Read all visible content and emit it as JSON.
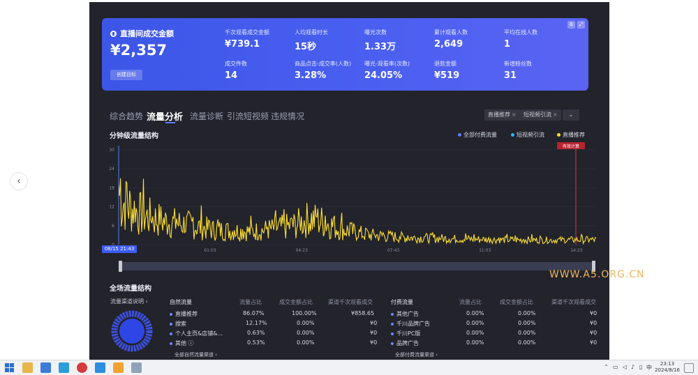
{
  "summary": {
    "gmv_label": "直播间成交金额",
    "gmv_value": "¥2,357",
    "goal_button": "创建目标",
    "metrics": [
      {
        "label": "千次观看成交金额",
        "value": "¥739.1"
      },
      {
        "label": "人均观看时长",
        "value": "15秒"
      },
      {
        "label": "曝光次数",
        "value": "1.33万"
      },
      {
        "label": "累计观看人数",
        "value": "2,649"
      },
      {
        "label": "平均在线人数",
        "value": "1"
      },
      {
        "label": "成交件数",
        "value": "14"
      },
      {
        "label": "商品点击-成交率(人数)",
        "value": "3.28%"
      },
      {
        "label": "曝光-观看率(次数)",
        "value": "24.05%"
      },
      {
        "label": "退款金额",
        "value": "¥519"
      },
      {
        "label": "新增粉丝数",
        "value": "31"
      }
    ]
  },
  "tabs": [
    "综合趋势",
    "流量分析",
    "流量诊断",
    "引流短视频",
    "违规情况"
  ],
  "active_tab": "流量分析",
  "filter_chips": [
    "直播推荐",
    "短视频引流"
  ],
  "chart_section": {
    "title": "分钟级流量结构",
    "legend": [
      {
        "label": "全部付费流量",
        "color": "#5b7cff"
      },
      {
        "label": "短视频引流",
        "color": "#29b6f6"
      },
      {
        "label": "直播推荐",
        "color": "#ffe033"
      }
    ],
    "start_badge": "08/15 21:43",
    "marker_label": "有效计算"
  },
  "chart_data": {
    "type": "line",
    "series_name": "直播推荐",
    "color": "#ffe033",
    "ylim": [
      0,
      30
    ],
    "y_ticks": [
      "0",
      "6",
      "12",
      "18",
      "24",
      "30"
    ],
    "x_ticks": [
      "01:03",
      "04:23",
      "07:43",
      "11:03",
      "14:23"
    ],
    "profile": [
      [
        0,
        14
      ],
      [
        0.02,
        12
      ],
      [
        0.05,
        9
      ],
      [
        0.1,
        7
      ],
      [
        0.15,
        6
      ],
      [
        0.2,
        4.5
      ],
      [
        0.28,
        4
      ],
      [
        0.33,
        5
      ],
      [
        0.37,
        6
      ],
      [
        0.4,
        8
      ],
      [
        0.43,
        7
      ],
      [
        0.46,
        5
      ],
      [
        0.52,
        3
      ],
      [
        0.6,
        2.2
      ],
      [
        0.7,
        1.8
      ],
      [
        0.8,
        1.5
      ],
      [
        0.9,
        1.4
      ],
      [
        1,
        1.5
      ]
    ]
  },
  "all_traffic": {
    "title": "全场流量结构",
    "channel_link": "流量渠道说明",
    "natural": {
      "headers": [
        "自然流量",
        "流量占比",
        "成交金额占比",
        "渠道千次观看成交"
      ],
      "rows": [
        [
          "直播推荐",
          "86.07%",
          "100.00%",
          "¥858.65"
        ],
        [
          "搜索",
          "12.17%",
          "0.00%",
          "¥0"
        ],
        [
          "个人主页&店铺&...",
          "0.63%",
          "0.00%",
          "¥0"
        ],
        [
          "其他",
          "0.53%",
          "0.00%",
          "¥0"
        ]
      ],
      "link": "全部自然流量渠道"
    },
    "paid": {
      "headers": [
        "付费流量",
        "流量占比",
        "成交金额占比",
        "渠道千次观看成交"
      ],
      "rows": [
        [
          "其他广告",
          "0.00%",
          "0.00%",
          "¥0"
        ],
        [
          "千川品牌广告",
          "0.00%",
          "0.00%",
          "¥0"
        ],
        [
          "千川PC版",
          "0.00%",
          "0.00%",
          "¥0"
        ],
        [
          "品牌广告",
          "0.00%",
          "0.00%",
          "¥0"
        ]
      ],
      "link": "全部付费流量渠道"
    }
  },
  "watermark": "WWW.A5.ORG.CN",
  "taskbar": {
    "time": "23:13",
    "date": "2024/8/16",
    "ime": "中"
  }
}
